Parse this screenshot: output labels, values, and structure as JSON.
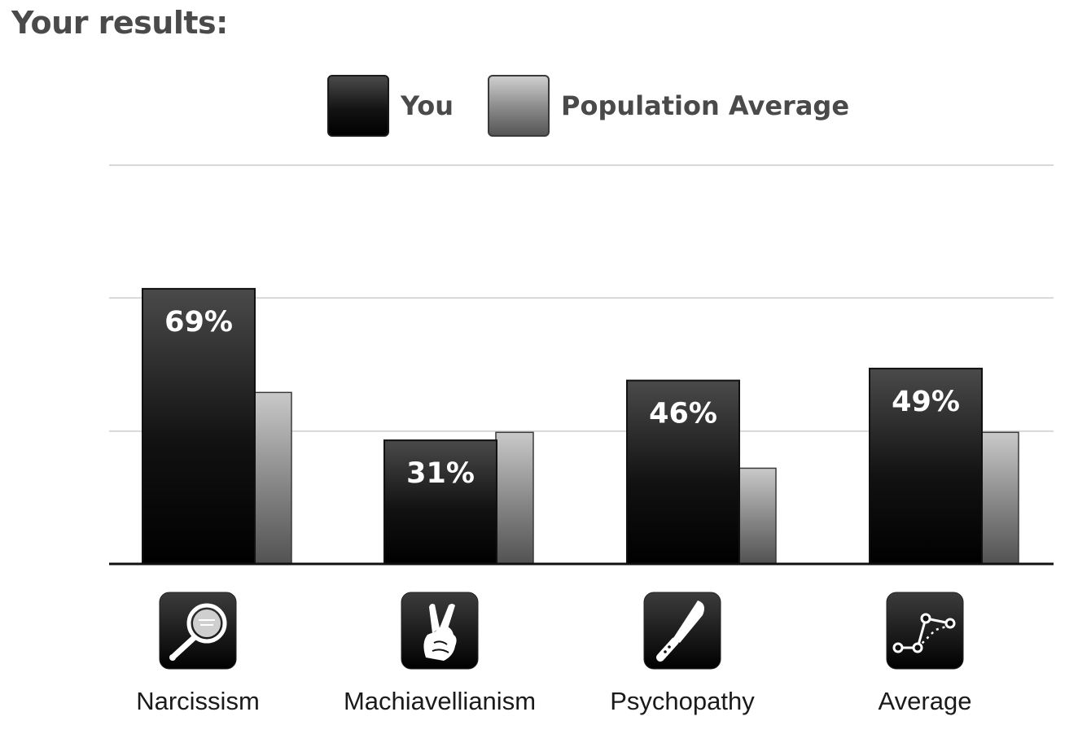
{
  "heading": "Your results:",
  "legend": {
    "you": "You",
    "population": "Population Average"
  },
  "chart_data": {
    "type": "bar",
    "categories": [
      "Narcissism",
      "Machiavellianism",
      "Psychopathy",
      "Average"
    ],
    "series": [
      {
        "name": "You",
        "values": [
          69,
          31,
          46,
          49
        ]
      },
      {
        "name": "Population Average",
        "values": [
          43,
          33,
          24,
          33
        ]
      }
    ],
    "data_labels": [
      "69%",
      "31%",
      "46%",
      "49%"
    ],
    "ylim": [
      0,
      100
    ],
    "grid": true,
    "legend_position": "top-center",
    "category_icons": [
      "mirror-icon",
      "crossed-fingers-icon",
      "knife-icon",
      "scatter-line-icon"
    ],
    "colors": {
      "you": "#000000",
      "population": "#8e8e8e",
      "grid": "#d8d8d8",
      "axis": "#111111"
    }
  }
}
